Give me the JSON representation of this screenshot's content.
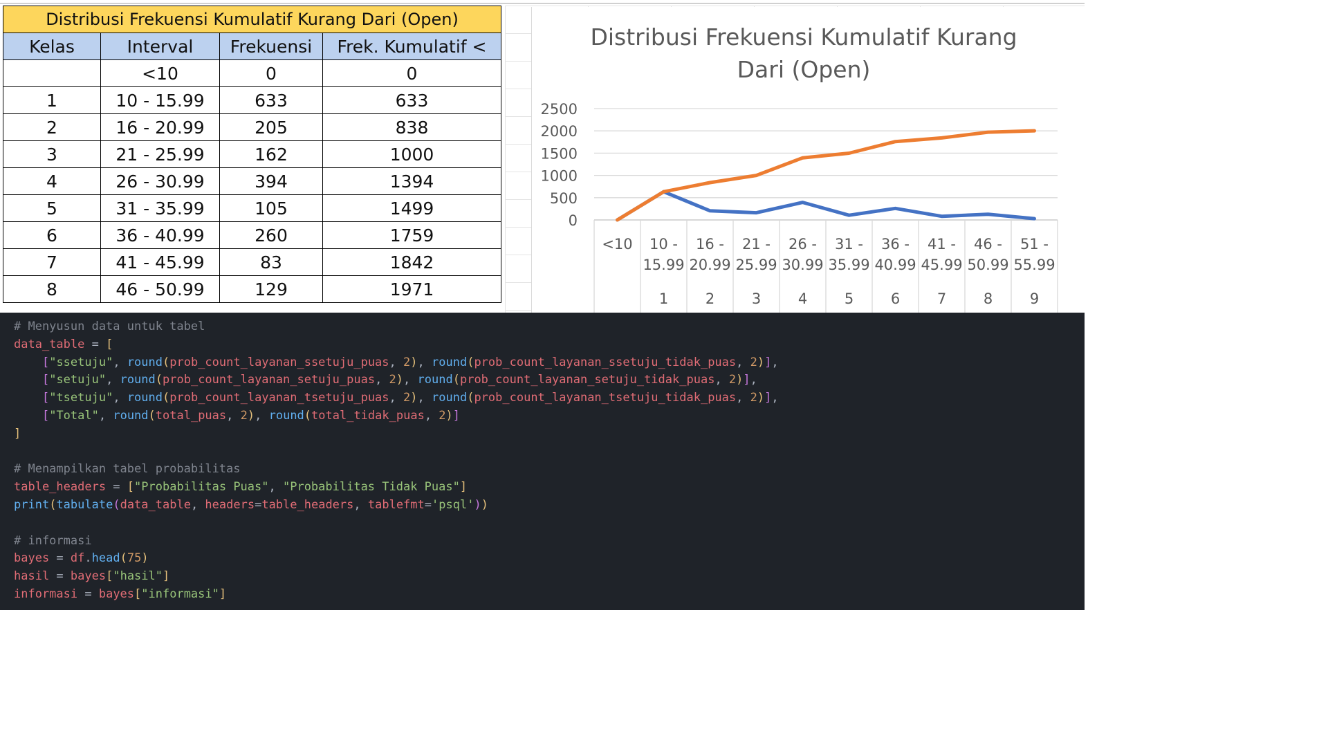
{
  "table": {
    "title": "Distribusi Frekuensi Kumulatif Kurang Dari (Open)",
    "headers": [
      "Kelas",
      "Interval",
      "Frekuensi",
      "Frek. Kumulatif <"
    ],
    "rows": [
      [
        "",
        "<10",
        "0",
        "0"
      ],
      [
        "1",
        "10 - 15.99",
        "633",
        "633"
      ],
      [
        "2",
        "16 - 20.99",
        "205",
        "838"
      ],
      [
        "3",
        "21 - 25.99",
        "162",
        "1000"
      ],
      [
        "4",
        "26 - 30.99",
        "394",
        "1394"
      ],
      [
        "5",
        "31 - 35.99",
        "105",
        "1499"
      ],
      [
        "6",
        "36 - 40.99",
        "260",
        "1759"
      ],
      [
        "7",
        "41 - 45.99",
        "83",
        "1842"
      ],
      [
        "8",
        "46 - 50.99",
        "129",
        "1971"
      ]
    ]
  },
  "chart_data": {
    "type": "line",
    "title": "Distribusi Frekuensi Kumulatif Kurang Dari (Open)",
    "title_lines": [
      "Distribusi Frekuensi Kumulatif Kurang",
      "Dari (Open)"
    ],
    "categories": [
      {
        "interval": "<10",
        "kelas": ""
      },
      {
        "interval": "10 - 15.99",
        "kelas": "1"
      },
      {
        "interval": "16 - 20.99",
        "kelas": "2"
      },
      {
        "interval": "21 - 25.99",
        "kelas": "3"
      },
      {
        "interval": "26 - 30.99",
        "kelas": "4"
      },
      {
        "interval": "31 - 35.99",
        "kelas": "5"
      },
      {
        "interval": "36 - 40.99",
        "kelas": "6"
      },
      {
        "interval": "41 - 45.99",
        "kelas": "7"
      },
      {
        "interval": "46 - 50.99",
        "kelas": "8"
      },
      {
        "interval": "51 - 55.99",
        "kelas": "9"
      }
    ],
    "series": [
      {
        "color": "#4472c4",
        "values": [
          0,
          633,
          205,
          162,
          394,
          105,
          260,
          83,
          129,
          30
        ]
      },
      {
        "color": "#ed7d31",
        "values": [
          0,
          633,
          838,
          1000,
          1394,
          1499,
          1759,
          1842,
          1971,
          2001
        ]
      }
    ],
    "yticks": [
      "0",
      "500",
      "1000",
      "1500",
      "2000",
      "2500"
    ],
    "ylim": [
      0,
      2500
    ],
    "grid": true
  },
  "code": [
    [
      [
        "cm",
        "# Menyusun data untuk tabel"
      ]
    ],
    [
      [
        "vr",
        "data_table"
      ],
      [
        "pu",
        " = "
      ],
      [
        "br1",
        "["
      ]
    ],
    [
      [
        "gd",
        "    "
      ],
      [
        "br2",
        "["
      ],
      [
        "st",
        "\"ssetuju\""
      ],
      [
        "pu",
        ", "
      ],
      [
        "fn",
        "round"
      ],
      [
        "br1",
        "("
      ],
      [
        "vr",
        "prob_count_layanan_ssetuju_puas"
      ],
      [
        "pu",
        ", "
      ],
      [
        "nm",
        "2"
      ],
      [
        "br1",
        ")"
      ],
      [
        "pu",
        ", "
      ],
      [
        "fn",
        "round"
      ],
      [
        "br1",
        "("
      ],
      [
        "vr",
        "prob_count_layanan_ssetuju_tidak_puas"
      ],
      [
        "pu",
        ", "
      ],
      [
        "nm",
        "2"
      ],
      [
        "br1",
        ")"
      ],
      [
        "br2",
        "]"
      ],
      [
        "pu",
        ","
      ]
    ],
    [
      [
        "gd",
        "    "
      ],
      [
        "br2",
        "["
      ],
      [
        "st",
        "\"setuju\""
      ],
      [
        "pu",
        ", "
      ],
      [
        "fn",
        "round"
      ],
      [
        "br1",
        "("
      ],
      [
        "vr",
        "prob_count_layanan_setuju_puas"
      ],
      [
        "pu",
        ", "
      ],
      [
        "nm",
        "2"
      ],
      [
        "br1",
        ")"
      ],
      [
        "pu",
        ", "
      ],
      [
        "fn",
        "round"
      ],
      [
        "br1",
        "("
      ],
      [
        "vr",
        "prob_count_layanan_setuju_tidak_puas"
      ],
      [
        "pu",
        ", "
      ],
      [
        "nm",
        "2"
      ],
      [
        "br1",
        ")"
      ],
      [
        "br2",
        "]"
      ],
      [
        "pu",
        ","
      ]
    ],
    [
      [
        "gd",
        "    "
      ],
      [
        "br2",
        "["
      ],
      [
        "st",
        "\"tsetuju\""
      ],
      [
        "pu",
        ", "
      ],
      [
        "fn",
        "round"
      ],
      [
        "br1",
        "("
      ],
      [
        "vr",
        "prob_count_layanan_tsetuju_puas"
      ],
      [
        "pu",
        ", "
      ],
      [
        "nm",
        "2"
      ],
      [
        "br1",
        ")"
      ],
      [
        "pu",
        ", "
      ],
      [
        "fn",
        "round"
      ],
      [
        "br1",
        "("
      ],
      [
        "vr",
        "prob_count_layanan_tsetuju_tidak_puas"
      ],
      [
        "pu",
        ", "
      ],
      [
        "nm",
        "2"
      ],
      [
        "br1",
        ")"
      ],
      [
        "br2",
        "]"
      ],
      [
        "pu",
        ","
      ]
    ],
    [
      [
        "gd",
        "    "
      ],
      [
        "br2",
        "["
      ],
      [
        "st",
        "\"Total\""
      ],
      [
        "pu",
        ", "
      ],
      [
        "fn",
        "round"
      ],
      [
        "br1",
        "("
      ],
      [
        "vr",
        "total_puas"
      ],
      [
        "pu",
        ", "
      ],
      [
        "nm",
        "2"
      ],
      [
        "br1",
        ")"
      ],
      [
        "pu",
        ", "
      ],
      [
        "fn",
        "round"
      ],
      [
        "br1",
        "("
      ],
      [
        "vr",
        "total_tidak_puas"
      ],
      [
        "pu",
        ", "
      ],
      [
        "nm",
        "2"
      ],
      [
        "br1",
        ")"
      ],
      [
        "br2",
        "]"
      ]
    ],
    [
      [
        "br1",
        "]"
      ]
    ],
    [],
    [
      [
        "cm",
        "# Menampilkan tabel probabilitas"
      ]
    ],
    [
      [
        "vr",
        "table_headers"
      ],
      [
        "pu",
        " = "
      ],
      [
        "br1",
        "["
      ],
      [
        "st",
        "\"Probabilitas Puas\""
      ],
      [
        "pu",
        ", "
      ],
      [
        "st",
        "\"Probabilitas Tidak Puas\""
      ],
      [
        "br1",
        "]"
      ]
    ],
    [
      [
        "fn",
        "print"
      ],
      [
        "br1",
        "("
      ],
      [
        "fn",
        "tabulate"
      ],
      [
        "br2",
        "("
      ],
      [
        "vr",
        "data_table"
      ],
      [
        "pu",
        ", "
      ],
      [
        "vr",
        "headers"
      ],
      [
        "pu",
        "="
      ],
      [
        "vr",
        "table_headers"
      ],
      [
        "pu",
        ", "
      ],
      [
        "vr",
        "tablefmt"
      ],
      [
        "pu",
        "="
      ],
      [
        "st",
        "'psql'"
      ],
      [
        "br2",
        ")"
      ],
      [
        "br1",
        ")"
      ]
    ],
    [],
    [
      [
        "cm",
        "# informasi"
      ]
    ],
    [
      [
        "vr",
        "bayes"
      ],
      [
        "pu",
        " = "
      ],
      [
        "vr",
        "df"
      ],
      [
        "pu",
        "."
      ],
      [
        "fn",
        "head"
      ],
      [
        "br1",
        "("
      ],
      [
        "nm",
        "75"
      ],
      [
        "br1",
        ")"
      ]
    ],
    [
      [
        "vr",
        "hasil"
      ],
      [
        "pu",
        " = "
      ],
      [
        "vr",
        "bayes"
      ],
      [
        "br1",
        "["
      ],
      [
        "st",
        "\"hasil\""
      ],
      [
        "br1",
        "]"
      ]
    ],
    [
      [
        "vr",
        "informasi"
      ],
      [
        "pu",
        " = "
      ],
      [
        "vr",
        "bayes"
      ],
      [
        "br1",
        "["
      ],
      [
        "st",
        "\"informasi\""
      ],
      [
        "br1",
        "]"
      ]
    ]
  ]
}
